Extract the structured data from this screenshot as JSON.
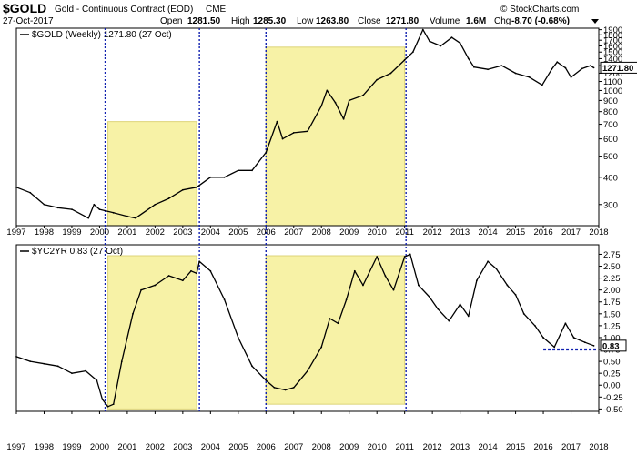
{
  "header": {
    "symbol": "$GOLD",
    "name": "Gold - Continuous Contract (EOD)",
    "exchange": "CME",
    "date": "27-Oct-2017",
    "open_label": "Open",
    "open": "1281.50",
    "high_label": "High",
    "high": "1285.30",
    "low_label": "Low",
    "low": "1263.80",
    "close_label": "Close",
    "close": "1271.80",
    "volume_label": "Volume",
    "volume": "1.6M",
    "chg_label": "Chg",
    "chg": "-8.70 (-0.68%)",
    "watermark": "© StockCharts.com"
  },
  "colors": {
    "highlight_fill": "#f7f2a6",
    "highlight_stroke": "#ddd477",
    "vline": "#1020b0",
    "series": "#000000",
    "ref_line": "#1020b0"
  },
  "chart_data": [
    {
      "type": "line",
      "legend": "$GOLD (Weekly) 1271.80 (27 Oct)",
      "last_value_label": "1271.80",
      "x_ticks": [
        "1997",
        "1998",
        "1999",
        "2000",
        "2001",
        "2002",
        "2003",
        "2004",
        "2005",
        "2006",
        "2007",
        "2008",
        "2009",
        "2010",
        "2011",
        "2012",
        "2013",
        "2014",
        "2015",
        "2016",
        "2017",
        "2018"
      ],
      "y_ticks": [
        "300",
        "400",
        "500",
        "600",
        "700",
        "800",
        "900",
        "1000",
        "1100",
        "1200",
        "1300",
        "1400",
        "1500",
        "1600",
        "1700",
        "1800",
        "1900"
      ],
      "ylim": [
        240,
        1930
      ],
      "scale": "log",
      "grid": false,
      "x": [
        1997.0,
        1997.5,
        1998.0,
        1998.5,
        1999.0,
        1999.6,
        1999.8,
        2000.0,
        2000.5,
        2001.0,
        2001.3,
        2002.0,
        2002.5,
        2003.0,
        2003.5,
        2004.0,
        2004.5,
        2005.0,
        2005.5,
        2006.0,
        2006.4,
        2006.6,
        2007.0,
        2007.5,
        2008.0,
        2008.2,
        2008.5,
        2008.8,
        2009.0,
        2009.5,
        2010.0,
        2010.5,
        2011.0,
        2011.3,
        2011.66,
        2011.9,
        2012.3,
        2012.7,
        2013.0,
        2013.3,
        2013.5,
        2014.0,
        2014.5,
        2015.0,
        2015.5,
        2015.96,
        2016.3,
        2016.5,
        2016.8,
        2017.0,
        2017.4,
        2017.7,
        2017.82
      ],
      "values": [
        360,
        340,
        300,
        290,
        285,
        260,
        300,
        285,
        275,
        265,
        260,
        300,
        320,
        350,
        360,
        400,
        400,
        430,
        430,
        520,
        720,
        600,
        640,
        650,
        850,
        1000,
        880,
        740,
        900,
        950,
        1120,
        1200,
        1380,
        1500,
        1900,
        1680,
        1600,
        1750,
        1650,
        1400,
        1280,
        1250,
        1300,
        1200,
        1150,
        1060,
        1250,
        1350,
        1270,
        1150,
        1260,
        1300,
        1272
      ]
    },
    {
      "type": "line",
      "legend": "$YC2YR 0.83 (27 Oct)",
      "last_value_label": "0.83",
      "x_ticks": [
        "1997",
        "1998",
        "1999",
        "2000",
        "2001",
        "2002",
        "2003",
        "2004",
        "2005",
        "2006",
        "2007",
        "2008",
        "2009",
        "2010",
        "2011",
        "2012",
        "2013",
        "2014",
        "2015",
        "2016",
        "2017",
        "2018"
      ],
      "y_ticks": [
        "-0.50",
        "-0.25",
        "0.00",
        "0.25",
        "0.50",
        "0.75",
        "1.00",
        "1.25",
        "1.50",
        "1.75",
        "2.00",
        "2.25",
        "2.50",
        "2.75"
      ],
      "ylim": [
        -0.55,
        2.95
      ],
      "reference_line": 0.75,
      "grid": false,
      "x": [
        1997.0,
        1997.5,
        1998.0,
        1998.5,
        1999.0,
        1999.5,
        1999.9,
        2000.1,
        2000.3,
        2000.5,
        2000.8,
        2001.2,
        2001.5,
        2002.0,
        2002.5,
        2003.0,
        2003.3,
        2003.5,
        2003.6,
        2004.0,
        2004.5,
        2005.0,
        2005.5,
        2006.0,
        2006.3,
        2006.7,
        2007.0,
        2007.5,
        2008.0,
        2008.3,
        2008.6,
        2008.9,
        2009.2,
        2009.5,
        2010.0,
        2010.3,
        2010.6,
        2011.0,
        2011.2,
        2011.5,
        2011.9,
        2012.2,
        2012.6,
        2013.0,
        2013.3,
        2013.6,
        2014.0,
        2014.3,
        2014.7,
        2015.0,
        2015.3,
        2015.7,
        2016.0,
        2016.4,
        2016.8,
        2017.1,
        2017.5,
        2017.82
      ],
      "values": [
        0.6,
        0.5,
        0.45,
        0.4,
        0.25,
        0.3,
        0.1,
        -0.3,
        -0.45,
        -0.4,
        0.5,
        1.5,
        2.0,
        2.1,
        2.3,
        2.2,
        2.4,
        2.35,
        2.6,
        2.4,
        1.8,
        1.0,
        0.4,
        0.1,
        -0.05,
        -0.1,
        -0.05,
        0.3,
        0.8,
        1.4,
        1.3,
        1.8,
        2.4,
        2.1,
        2.7,
        2.3,
        2.0,
        2.7,
        2.75,
        2.1,
        1.85,
        1.6,
        1.35,
        1.7,
        1.45,
        2.2,
        2.6,
        2.45,
        2.1,
        1.9,
        1.5,
        1.25,
        1.0,
        0.8,
        1.3,
        1.0,
        0.9,
        0.83
      ]
    }
  ],
  "highlights": [
    {
      "panel": 0,
      "x_range": [
        2000.3,
        2003.5
      ],
      "y_top": 720
    },
    {
      "panel": 0,
      "x_range": [
        2006.0,
        2011.0
      ],
      "y_top": 1580
    },
    {
      "panel": 1,
      "x_range": [
        2000.3,
        2003.5
      ],
      "y_range": [
        -0.5,
        2.72
      ]
    },
    {
      "panel": 1,
      "x_range": [
        2006.0,
        2011.0
      ],
      "y_range": [
        -0.4,
        2.72
      ]
    }
  ],
  "vlines": [
    2000.2,
    2003.6,
    2006.0,
    2011.05
  ],
  "reference_line_x_start": 2016.0
}
